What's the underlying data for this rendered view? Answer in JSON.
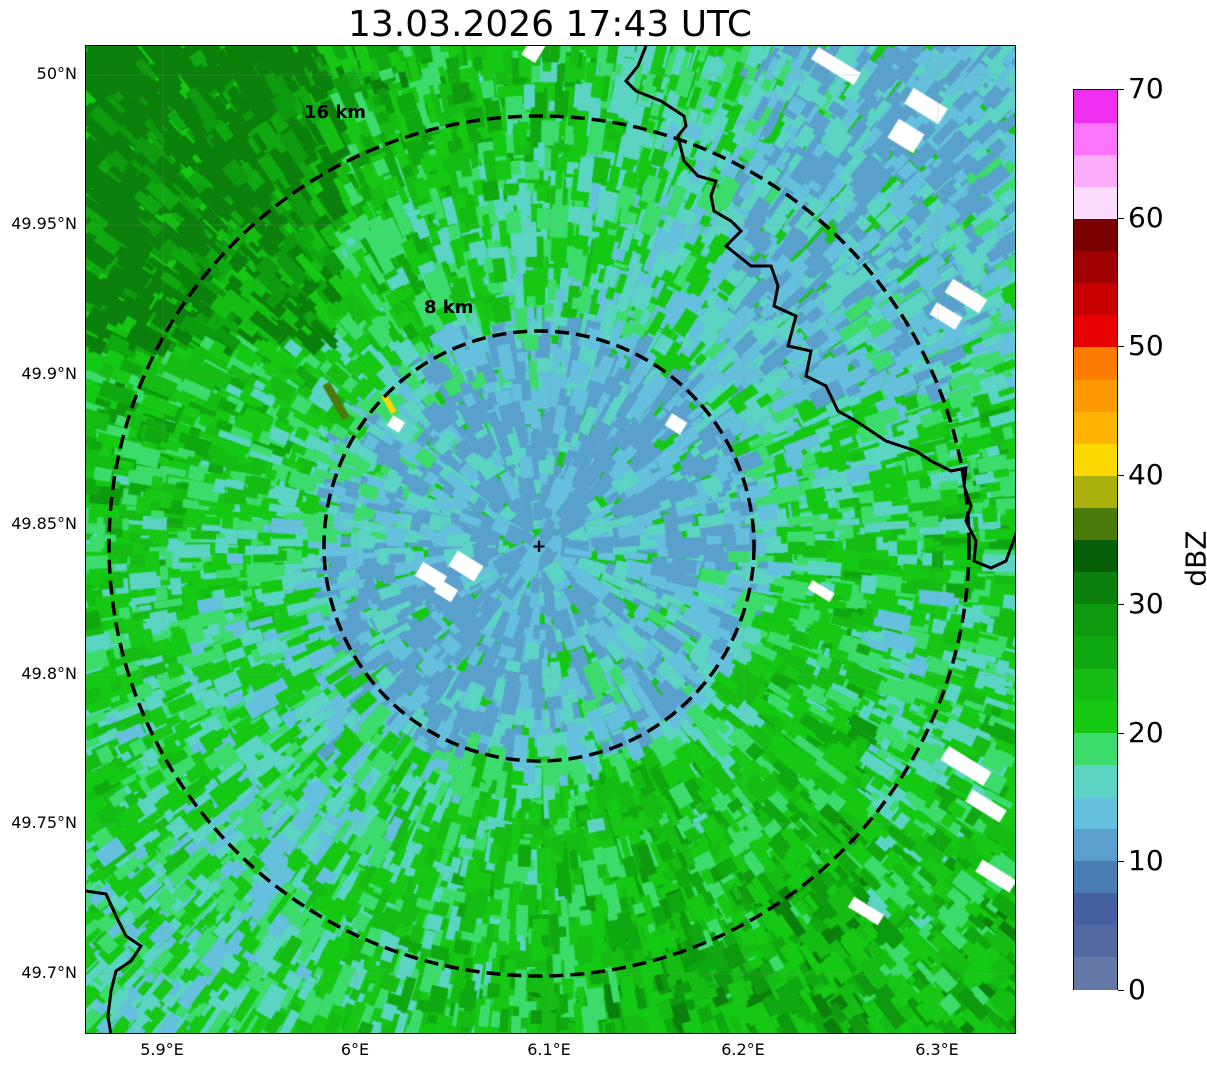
{
  "title": "13.03.2026 17:43 UTC",
  "map": {
    "lat_ticks": [
      "50°N",
      "49.95°N",
      "49.9°N",
      "49.85°N",
      "49.8°N",
      "49.75°N",
      "49.7°N"
    ],
    "lon_ticks": [
      "5.9°E",
      "6°E",
      "6.1°E",
      "6.2°E",
      "6.3°E"
    ],
    "range_rings": [
      {
        "label": "8 km",
        "radius_km": 8
      },
      {
        "label": "16 km",
        "radius_km": 16
      }
    ],
    "radar_site_marker": "+"
  },
  "colorbar": {
    "label": "dBZ",
    "ticks": [
      "0",
      "10",
      "20",
      "30",
      "40",
      "50",
      "60",
      "70"
    ],
    "min": 0,
    "max": 70,
    "step": 2.5,
    "colors": [
      "#6478a8",
      "#5468a2",
      "#44609e",
      "#4a7cb4",
      "#5aa0cc",
      "#64c0dc",
      "#5cd4c4",
      "#3cdc6c",
      "#14c814",
      "#14bc14",
      "#10a810",
      "#0e9a0e",
      "#0c800c",
      "#065e06",
      "#4a7a0a",
      "#aab00c",
      "#fcd800",
      "#fcb400",
      "#fc9800",
      "#fc7c00",
      "#e80000",
      "#c80000",
      "#a00000",
      "#780000",
      "#fcdcfc",
      "#fcacfc",
      "#fc74fc",
      "#f030f0"
    ]
  }
}
